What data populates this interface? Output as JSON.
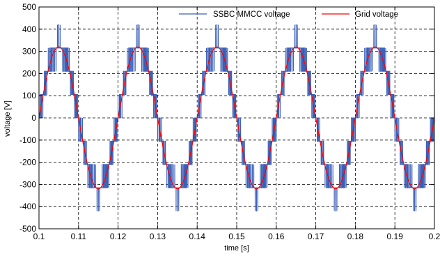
{
  "chart_data": {
    "type": "line",
    "xlabel": "time [s]",
    "ylabel": "voltage [V]",
    "xlim": [
      0.1,
      0.2
    ],
    "ylim": [
      -500,
      500
    ],
    "x_ticks": [
      0.1,
      0.11,
      0.12,
      0.13,
      0.14,
      0.15,
      0.16,
      0.17,
      0.18,
      0.19,
      0.2
    ],
    "x_tick_labels": [
      "0.1",
      "0.11",
      "0.12",
      "0.13",
      "0.14",
      "0.15",
      "0.16",
      "0.17",
      "0.18",
      "0.19",
      "0.2"
    ],
    "y_ticks": [
      -500,
      -400,
      -300,
      -200,
      -100,
      0,
      100,
      200,
      300,
      400,
      500
    ],
    "y_tick_labels": [
      "-500",
      "-400",
      "-300",
      "-200",
      "-100",
      "0",
      "100",
      "200",
      "300",
      "400",
      "500"
    ],
    "grid": true,
    "legend_position": "top-right",
    "frequency_hz": 50,
    "series": [
      {
        "name": "SSBC MMCC voltage",
        "color": "#3a5fb8",
        "kind": "staircase",
        "level_step": 105,
        "max_level": 4,
        "peak": 420
      },
      {
        "name": "Grid voltage",
        "color": "#ff0000",
        "kind": "sine",
        "amplitude": 320
      }
    ]
  }
}
